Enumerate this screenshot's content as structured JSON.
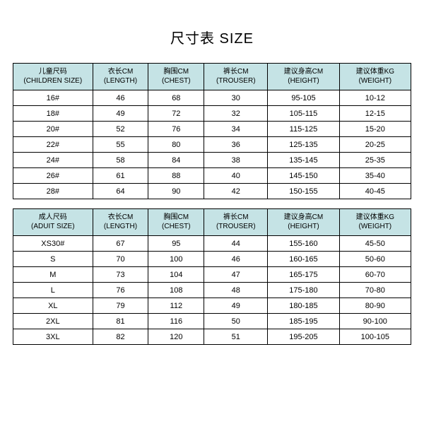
{
  "title": "尺寸表 SIZE",
  "colors": {
    "header_bg": "#c5e3e5",
    "border": "#000000",
    "bg": "#ffffff",
    "text": "#000000"
  },
  "columns_cn": [
    "儿童尺码",
    "衣长CM",
    "胸围CM",
    "裤长CM",
    "建议身高CM",
    "建议体重KG"
  ],
  "columns_en": [
    "(CHILDREN SIZE)",
    "(LENGTH)",
    "(CHEST)",
    "(TROUSER)",
    "(HEIGHT)",
    "(WEIGHT)"
  ],
  "children_rows": [
    [
      "16#",
      "46",
      "68",
      "30",
      "95-105",
      "10-12"
    ],
    [
      "18#",
      "49",
      "72",
      "32",
      "105-115",
      "12-15"
    ],
    [
      "20#",
      "52",
      "76",
      "34",
      "115-125",
      "15-20"
    ],
    [
      "22#",
      "55",
      "80",
      "36",
      "125-135",
      "20-25"
    ],
    [
      "24#",
      "58",
      "84",
      "38",
      "135-145",
      "25-35"
    ],
    [
      "26#",
      "61",
      "88",
      "40",
      "145-150",
      "35-40"
    ],
    [
      "28#",
      "64",
      "90",
      "42",
      "150-155",
      "40-45"
    ]
  ],
  "adult_columns_cn": [
    "成人尺码",
    "衣长CM",
    "胸围CM",
    "裤长CM",
    "建议身高CM",
    "建议体重KG"
  ],
  "adult_columns_en": [
    "(ADUIT SIZE)",
    "(LENGTH)",
    "(CHEST)",
    "(TROUSER)",
    "(HEIGHT)",
    "(WEIGHT)"
  ],
  "adult_rows": [
    [
      "XS30#",
      "67",
      "95",
      "44",
      "155-160",
      "45-50"
    ],
    [
      "S",
      "70",
      "100",
      "46",
      "160-165",
      "50-60"
    ],
    [
      "M",
      "73",
      "104",
      "47",
      "165-175",
      "60-70"
    ],
    [
      "L",
      "76",
      "108",
      "48",
      "175-180",
      "70-80"
    ],
    [
      "XL",
      "79",
      "112",
      "49",
      "180-185",
      "80-90"
    ],
    [
      "2XL",
      "81",
      "116",
      "50",
      "185-195",
      "90-100"
    ],
    [
      "3XL",
      "82",
      "120",
      "51",
      "195-205",
      "100-105"
    ]
  ]
}
